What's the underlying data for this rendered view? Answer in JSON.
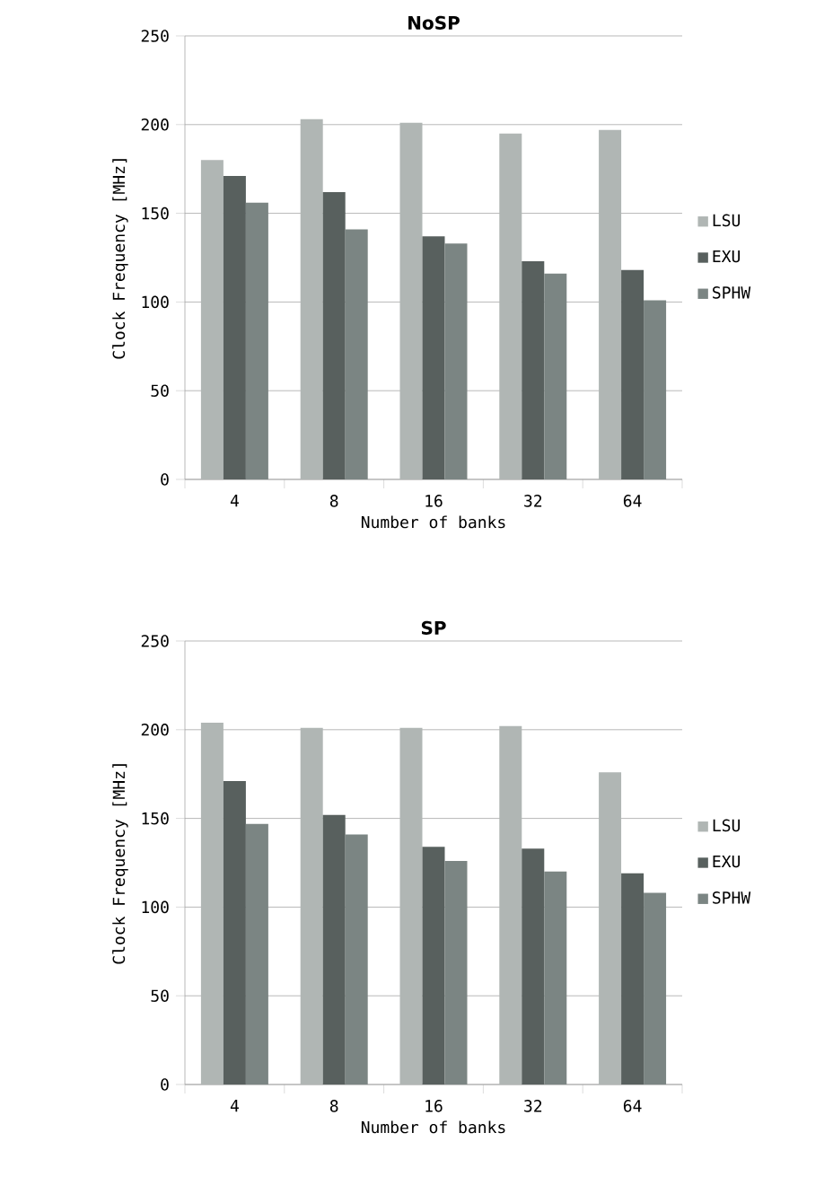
{
  "chart_data": [
    {
      "type": "bar",
      "title": "NoSP",
      "xlabel": "Number of banks",
      "ylabel": "Clock Frequency [MHz]",
      "categories": [
        "4",
        "8",
        "16",
        "32",
        "64"
      ],
      "ylim": [
        0,
        250
      ],
      "yticks": [
        0,
        50,
        100,
        150,
        200,
        250
      ],
      "grid": "y",
      "legend": "right",
      "series": [
        {
          "name": "LSU",
          "color": "#b0b6b4",
          "values": [
            180,
            203,
            201,
            195,
            197
          ]
        },
        {
          "name": "EXU",
          "color": "#58605e",
          "values": [
            171,
            162,
            137,
            123,
            118
          ]
        },
        {
          "name": "SPHW",
          "color": "#7b8583",
          "values": [
            156,
            141,
            133,
            116,
            101
          ]
        }
      ]
    },
    {
      "type": "bar",
      "title": "SP",
      "xlabel": "Number of banks",
      "ylabel": "Clock Frequency [MHz]",
      "categories": [
        "4",
        "8",
        "16",
        "32",
        "64"
      ],
      "ylim": [
        0,
        250
      ],
      "yticks": [
        0,
        50,
        100,
        150,
        200,
        250
      ],
      "grid": "y",
      "legend": "right",
      "series": [
        {
          "name": "LSU",
          "color": "#b0b6b4",
          "values": [
            204,
            201,
            201,
            202,
            176
          ]
        },
        {
          "name": "EXU",
          "color": "#58605e",
          "values": [
            171,
            152,
            134,
            133,
            119
          ]
        },
        {
          "name": "SPHW",
          "color": "#7b8583",
          "values": [
            147,
            141,
            126,
            120,
            108
          ]
        }
      ]
    }
  ]
}
